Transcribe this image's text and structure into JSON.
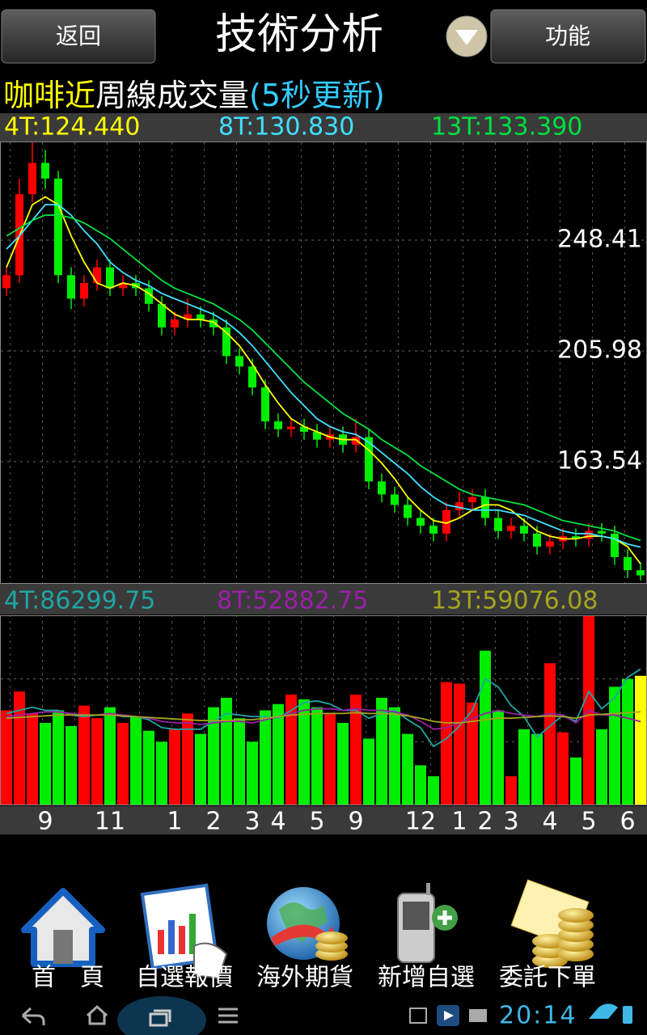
{
  "header": {
    "back": "返回",
    "title": "技術分析",
    "function": "功能"
  },
  "chart_data": [
    {
      "type": "candlestick",
      "title_parts": [
        {
          "text": "咖啡近",
          "color": "#ffff00"
        },
        {
          "text": "周線成交量",
          "color": "#ffffff"
        },
        {
          "text": "(5秒更新)",
          "color": "#33ccff"
        }
      ],
      "open": [
        230,
        235,
        266,
        278,
        272,
        235,
        226,
        232,
        238,
        230,
        232,
        230,
        224,
        215,
        218,
        220,
        218,
        215,
        204,
        200,
        192,
        179,
        176,
        177,
        175,
        172,
        174,
        170,
        173,
        156,
        151,
        147,
        142,
        139,
        136,
        145,
        148,
        150,
        142,
        137,
        139,
        136,
        131,
        133,
        135,
        134,
        137,
        136,
        127,
        122
      ],
      "high": [
        238,
        272,
        286,
        283,
        275,
        238,
        235,
        241,
        241,
        235,
        235,
        233,
        227,
        221,
        226,
        223,
        221,
        218,
        207,
        203,
        195,
        182,
        180,
        180,
        178,
        177,
        177,
        180,
        176,
        159,
        154,
        150,
        145,
        142,
        148,
        152,
        153,
        153,
        145,
        142,
        142,
        139,
        136,
        138,
        138,
        140,
        140,
        139,
        130,
        125
      ],
      "low": [
        227,
        232,
        263,
        268,
        232,
        222,
        223,
        229,
        227,
        227,
        227,
        221,
        212,
        212,
        215,
        215,
        212,
        201,
        197,
        189,
        176,
        173,
        173,
        172,
        169,
        169,
        167,
        167,
        153,
        148,
        144,
        139,
        136,
        133,
        133,
        142,
        145,
        139,
        134,
        134,
        133,
        128,
        128,
        130,
        131,
        131,
        133,
        124,
        119,
        118
      ],
      "close": [
        235,
        266,
        278,
        272,
        235,
        226,
        232,
        238,
        230,
        232,
        230,
        224,
        215,
        218,
        220,
        218,
        215,
        204,
        200,
        192,
        179,
        176,
        177,
        175,
        172,
        174,
        170,
        173,
        156,
        151,
        147,
        142,
        139,
        136,
        145,
        148,
        150,
        142,
        137,
        139,
        136,
        131,
        133,
        135,
        134,
        137,
        136,
        127,
        122,
        120
      ],
      "up_color": "#ff0000",
      "down_color": "#00ee00",
      "ylim": [
        117.39,
        286.2
      ],
      "yticks": [
        248.41,
        205.98,
        163.54
      ],
      "grid": true,
      "series": [
        {
          "name": "4T:124.440",
          "color": "#ffff00",
          "values": [
            238,
            250,
            262,
            265,
            262,
            250,
            240,
            232,
            230,
            232,
            231,
            228,
            224,
            220,
            218,
            218,
            217,
            213,
            208,
            201,
            193,
            186,
            180,
            177,
            175,
            173,
            172,
            172,
            168,
            163,
            157,
            150,
            145,
            141,
            140,
            142,
            145,
            147,
            147,
            145,
            141,
            137,
            135,
            134,
            134,
            135,
            135,
            134,
            131,
            124.44
          ]
        },
        {
          "name": "8T:130.830",
          "color": "#40e0ff",
          "values": [
            245,
            250,
            256,
            262,
            262,
            258,
            252,
            247,
            240,
            236,
            233,
            231,
            228,
            226,
            224,
            222,
            220,
            217,
            213,
            208,
            202,
            196,
            190,
            185,
            180,
            177,
            175,
            174,
            171,
            167,
            163,
            159,
            154,
            150,
            147,
            146,
            145,
            145,
            145,
            144,
            143,
            141,
            139,
            137,
            136,
            136,
            135,
            134,
            132,
            130.83
          ]
        },
        {
          "name": "13T:133.390",
          "color": "#00e040",
          "values": [
            250,
            253,
            256,
            258,
            258,
            257,
            255,
            252,
            249,
            245,
            241,
            237,
            233,
            230,
            228,
            226,
            224,
            221,
            218,
            214,
            209,
            204,
            199,
            194,
            190,
            186,
            182,
            179,
            176,
            172,
            169,
            166,
            162,
            159,
            156,
            153,
            151,
            150,
            149,
            148,
            147,
            145,
            143,
            141,
            140,
            139,
            138,
            137,
            135,
            133.39
          ]
        }
      ]
    },
    {
      "type": "bar",
      "categories": [
        null,
        null,
        null,
        "9",
        null,
        null,
        null,
        null,
        "11",
        null,
        null,
        null,
        null,
        "1",
        null,
        null,
        "2",
        null,
        null,
        "3",
        null,
        "4",
        null,
        null,
        "5",
        null,
        null,
        "9",
        null,
        null,
        null,
        null,
        "12",
        null,
        null,
        "1",
        null,
        "2",
        null,
        "3",
        null,
        null,
        "4",
        null,
        null,
        "5",
        null,
        null,
        "6",
        null
      ],
      "values": [
        60000,
        72000,
        58000,
        52000,
        60000,
        50000,
        63000,
        55000,
        62000,
        52000,
        56000,
        47000,
        40000,
        48000,
        58000,
        45000,
        62000,
        68000,
        55000,
        40000,
        60000,
        64000,
        70000,
        67000,
        62000,
        58000,
        52000,
        70000,
        42000,
        68000,
        62000,
        45000,
        25000,
        18000,
        78000,
        77000,
        65000,
        98000,
        60000,
        18000,
        48000,
        45000,
        90000,
        46000,
        30000,
        120000,
        48000,
        75000,
        80000,
        82000
      ],
      "last_color": "#ffff00",
      "ylim": [
        0,
        120000
      ],
      "grid_lines": [
        40000,
        80000
      ],
      "series": [
        {
          "name": "4T:86299.75",
          "color": "#1fa5a5",
          "values": [
            58000,
            60000,
            62000,
            60000,
            60000,
            57000,
            56000,
            57000,
            58000,
            56000,
            56000,
            54000,
            49000,
            48000,
            48000,
            48000,
            53000,
            58000,
            57000,
            56000,
            56000,
            55000,
            60000,
            65000,
            66000,
            64000,
            60000,
            60000,
            55000,
            58000,
            60000,
            54000,
            49000,
            37000,
            42000,
            50000,
            60000,
            80000,
            75000,
            63000,
            56000,
            43000,
            50000,
            57000,
            53000,
            72000,
            61000,
            68000,
            81000,
            86299.75
          ]
        },
        {
          "name": "8T:52882.75",
          "color": "#9a1fa8",
          "values": [
            56000,
            57000,
            58000,
            59000,
            59000,
            58000,
            57000,
            57000,
            58000,
            57000,
            56000,
            55000,
            53000,
            52000,
            52000,
            51000,
            52000,
            53000,
            53000,
            52000,
            54000,
            56000,
            58000,
            60000,
            61000,
            61000,
            60000,
            61000,
            60000,
            60000,
            59000,
            57000,
            53000,
            48000,
            49000,
            52000,
            55000,
            58000,
            60000,
            58000,
            57000,
            56000,
            58000,
            57000,
            52000,
            60000,
            57000,
            57000,
            55000,
            52882.75
          ]
        },
        {
          "name": "13T:59076.08",
          "color": "#a5a51f",
          "values": [
            55000,
            55500,
            56000,
            56500,
            57000,
            57000,
            57000,
            57000,
            57000,
            56500,
            56000,
            55500,
            55000,
            54500,
            54000,
            53500,
            53500,
            53500,
            54000,
            54000,
            55000,
            56000,
            57000,
            57500,
            58000,
            58000,
            58000,
            58500,
            58000,
            58000,
            57500,
            56500,
            55000,
            53000,
            52000,
            52000,
            53000,
            54000,
            55000,
            55000,
            55500,
            56000,
            56500,
            56000,
            55000,
            57000,
            57500,
            58000,
            58500,
            59076.08
          ]
        }
      ]
    }
  ],
  "menu": [
    "首　頁",
    "自選報價",
    "海外期貨",
    "新增自選",
    "委託下單"
  ],
  "status_bar": {
    "time": "20:14"
  }
}
